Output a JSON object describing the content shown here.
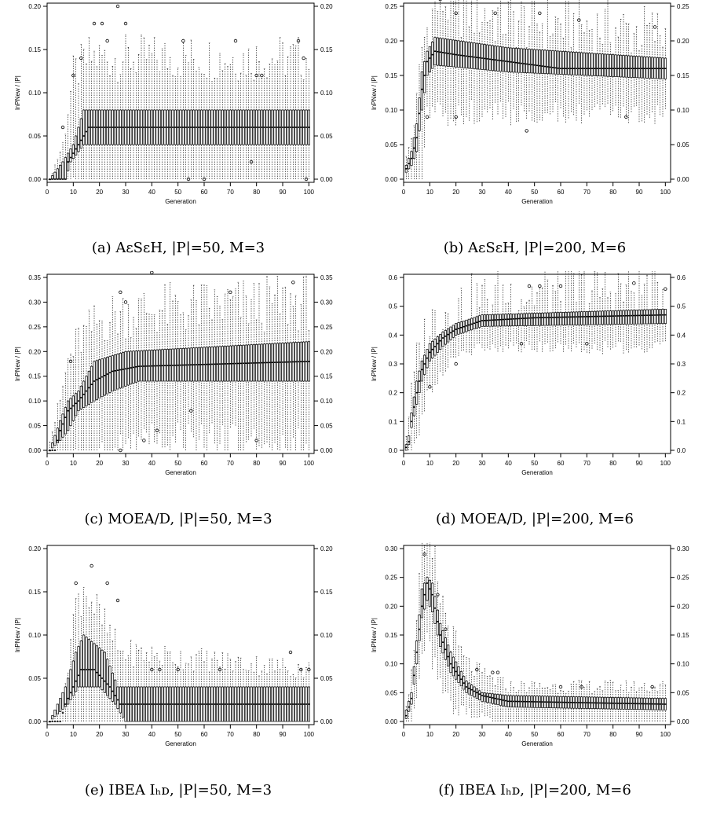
{
  "charts": [
    {
      "caption": "(a) AεSεH, |P|=50, M=3",
      "xlabel": "Generation",
      "ylabel": "lnPNew / |P|",
      "xlim": [
        0,
        102
      ],
      "ylim": [
        0,
        0.2
      ],
      "yticks": [
        "0.00",
        "0.05",
        "0.10",
        "0.15",
        "0.20"
      ]
    },
    {
      "caption": "(b) AεSεH, |P|=200, M=6",
      "xlabel": "Generation",
      "ylabel": "lnPNew / |P|",
      "xlim": [
        0,
        102
      ],
      "ylim": [
        0,
        0.25
      ],
      "yticks": [
        "0.00",
        "0.05",
        "0.10",
        "0.15",
        "0.20",
        "0.25"
      ]
    },
    {
      "caption": "(c) MOEA/D, |P|=50, M=3",
      "xlabel": "Generation",
      "ylabel": "lnPNew / |P|",
      "xlim": [
        0,
        102
      ],
      "ylim": [
        0,
        0.35
      ],
      "yticks": [
        "0.00",
        "0.05",
        "0.10",
        "0.15",
        "0.20",
        "0.25",
        "0.30",
        "0.35"
      ]
    },
    {
      "caption": "(d) MOEA/D, |P|=200, M=6",
      "xlabel": "Generation",
      "ylabel": "lnPNew / |P|",
      "xlim": [
        0,
        102
      ],
      "ylim": [
        0,
        0.6
      ],
      "yticks": [
        "0.0",
        "0.1",
        "0.2",
        "0.3",
        "0.4",
        "0.5",
        "0.6"
      ]
    },
    {
      "caption": "(e) IBEA Iₕᴅ, |P|=50, M=3",
      "xlabel": "Generation",
      "ylabel": "lnPNew / |P|",
      "xlim": [
        0,
        102
      ],
      "ylim": [
        0,
        0.2
      ],
      "yticks": [
        "0.00",
        "0.05",
        "0.10",
        "0.15",
        "0.20"
      ]
    },
    {
      "caption": "(f) IBEA Iₕᴅ, |P|=200, M=6",
      "xlabel": "Generation",
      "ylabel": "lnPNew / |P|",
      "xlim": [
        0,
        102
      ],
      "ylim": [
        0,
        0.3
      ],
      "yticks": [
        "0.00",
        "0.05",
        "0.10",
        "0.15",
        "0.20",
        "0.25",
        "0.30"
      ]
    }
  ],
  "chart_data": [
    {
      "type": "box",
      "panel": "a",
      "xticks": [
        0,
        10,
        20,
        30,
        40,
        50,
        60,
        70,
        80,
        90,
        100
      ],
      "generations": [
        1,
        100
      ],
      "median_points": [
        [
          1,
          0
        ],
        [
          7,
          0
        ],
        [
          8,
          0.02
        ],
        [
          12,
          0.04
        ],
        [
          16,
          0.06
        ],
        [
          20,
          0.06
        ],
        [
          30,
          0.06
        ],
        [
          50,
          0.06
        ],
        [
          100,
          0.06
        ]
      ],
      "q1_points": [
        [
          1,
          0
        ],
        [
          7,
          0
        ],
        [
          9,
          0.02
        ],
        [
          14,
          0.04
        ],
        [
          100,
          0.04
        ]
      ],
      "q3_points": [
        [
          1,
          0
        ],
        [
          6,
          0.02
        ],
        [
          10,
          0.04
        ],
        [
          14,
          0.08
        ],
        [
          18,
          0.08
        ],
        [
          100,
          0.08
        ]
      ],
      "max_points": [
        [
          1,
          0
        ],
        [
          6,
          0.04
        ],
        [
          10,
          0.12
        ],
        [
          16,
          0.14
        ],
        [
          100,
          0.14
        ]
      ],
      "outliers": [
        [
          6,
          0.06
        ],
        [
          10,
          0.12
        ],
        [
          13,
          0.14
        ],
        [
          18,
          0.18
        ],
        [
          21,
          0.18
        ],
        [
          23,
          0.16
        ],
        [
          27,
          0.2
        ],
        [
          30,
          0.18
        ],
        [
          52,
          0.16
        ],
        [
          72,
          0.16
        ],
        [
          96,
          0.16
        ],
        [
          98,
          0.14
        ],
        [
          80,
          0.12
        ],
        [
          82,
          0.12
        ],
        [
          54,
          0.0
        ],
        [
          60,
          0.0
        ],
        [
          78,
          0.02
        ],
        [
          99,
          0.0
        ]
      ]
    },
    {
      "type": "box",
      "panel": "b",
      "xticks": [
        0,
        10,
        20,
        30,
        40,
        50,
        60,
        70,
        80,
        90,
        100
      ],
      "generations": [
        1,
        100
      ],
      "median_points": [
        [
          1,
          0.015
        ],
        [
          3,
          0.03
        ],
        [
          5,
          0.06
        ],
        [
          7,
          0.13
        ],
        [
          9,
          0.17
        ],
        [
          12,
          0.185
        ],
        [
          20,
          0.18
        ],
        [
          40,
          0.17
        ],
        [
          60,
          0.16
        ],
        [
          100,
          0.16
        ]
      ],
      "q1_points": [
        [
          1,
          0.01
        ],
        [
          3,
          0.02
        ],
        [
          5,
          0.04
        ],
        [
          7,
          0.1
        ],
        [
          9,
          0.15
        ],
        [
          12,
          0.165
        ],
        [
          40,
          0.155
        ],
        [
          100,
          0.145
        ]
      ],
      "q3_points": [
        [
          1,
          0.02
        ],
        [
          3,
          0.04
        ],
        [
          5,
          0.08
        ],
        [
          7,
          0.155
        ],
        [
          9,
          0.185
        ],
        [
          12,
          0.205
        ],
        [
          40,
          0.19
        ],
        [
          100,
          0.175
        ]
      ],
      "max_points": [
        [
          1,
          0.03
        ],
        [
          3,
          0.06
        ],
        [
          5,
          0.11
        ],
        [
          7,
          0.19
        ],
        [
          10,
          0.23
        ],
        [
          14,
          0.26
        ],
        [
          40,
          0.23
        ],
        [
          100,
          0.21
        ]
      ],
      "outliers": [
        [
          14,
          0.26
        ],
        [
          20,
          0.24
        ],
        [
          35,
          0.24
        ],
        [
          52,
          0.24
        ],
        [
          47,
          0.07
        ],
        [
          20,
          0.09
        ],
        [
          85,
          0.09
        ],
        [
          9,
          0.09
        ],
        [
          67,
          0.23
        ],
        [
          96,
          0.22
        ]
      ]
    },
    {
      "type": "box",
      "panel": "c",
      "xticks": [
        0,
        10,
        20,
        30,
        40,
        50,
        60,
        70,
        80,
        90,
        100
      ],
      "generations": [
        1,
        100
      ],
      "median_points": [
        [
          1,
          0
        ],
        [
          3,
          0
        ],
        [
          5,
          0.04
        ],
        [
          8,
          0.08
        ],
        [
          12,
          0.1
        ],
        [
          18,
          0.14
        ],
        [
          25,
          0.16
        ],
        [
          35,
          0.17
        ],
        [
          100,
          0.18
        ]
      ],
      "q1_points": [
        [
          1,
          0
        ],
        [
          5,
          0.02
        ],
        [
          8,
          0.04
        ],
        [
          12,
          0.08
        ],
        [
          18,
          0.1
        ],
        [
          25,
          0.12
        ],
        [
          35,
          0.14
        ],
        [
          100,
          0.14
        ]
      ],
      "q3_points": [
        [
          1,
          0
        ],
        [
          5,
          0.06
        ],
        [
          8,
          0.1
        ],
        [
          12,
          0.12
        ],
        [
          18,
          0.18
        ],
        [
          30,
          0.2
        ],
        [
          100,
          0.22
        ]
      ],
      "max_points": [
        [
          1,
          0.02
        ],
        [
          5,
          0.1
        ],
        [
          8,
          0.18
        ],
        [
          12,
          0.22
        ],
        [
          20,
          0.26
        ],
        [
          30,
          0.28
        ],
        [
          100,
          0.3
        ]
      ],
      "outliers": [
        [
          9,
          0.18
        ],
        [
          28,
          0.32
        ],
        [
          40,
          0.36
        ],
        [
          70,
          0.32
        ],
        [
          94,
          0.34
        ],
        [
          30,
          0.3
        ],
        [
          37,
          0.02
        ],
        [
          42,
          0.04
        ],
        [
          55,
          0.08
        ],
        [
          80,
          0.02
        ],
        [
          28,
          0.0
        ]
      ]
    },
    {
      "type": "box",
      "panel": "d",
      "xticks": [
        0,
        10,
        20,
        30,
        40,
        50,
        60,
        70,
        80,
        90,
        100
      ],
      "generations": [
        1,
        100
      ],
      "median_points": [
        [
          1,
          0.01
        ],
        [
          2,
          0.03
        ],
        [
          3,
          0.1
        ],
        [
          5,
          0.2
        ],
        [
          7,
          0.28
        ],
        [
          10,
          0.34
        ],
        [
          15,
          0.39
        ],
        [
          20,
          0.42
        ],
        [
          30,
          0.45
        ],
        [
          50,
          0.46
        ],
        [
          100,
          0.47
        ]
      ],
      "q1_points": [
        [
          1,
          0.0
        ],
        [
          2,
          0.02
        ],
        [
          3,
          0.08
        ],
        [
          5,
          0.16
        ],
        [
          7,
          0.24
        ],
        [
          10,
          0.31
        ],
        [
          15,
          0.36
        ],
        [
          20,
          0.4
        ],
        [
          30,
          0.43
        ],
        [
          100,
          0.44
        ]
      ],
      "q3_points": [
        [
          1,
          0.02
        ],
        [
          2,
          0.05
        ],
        [
          3,
          0.13
        ],
        [
          5,
          0.24
        ],
        [
          7,
          0.31
        ],
        [
          10,
          0.37
        ],
        [
          15,
          0.41
        ],
        [
          20,
          0.44
        ],
        [
          30,
          0.47
        ],
        [
          100,
          0.49
        ]
      ],
      "max_points": [
        [
          1,
          0.05
        ],
        [
          3,
          0.2
        ],
        [
          5,
          0.32
        ],
        [
          8,
          0.4
        ],
        [
          12,
          0.46
        ],
        [
          20,
          0.5
        ],
        [
          40,
          0.54
        ],
        [
          100,
          0.56
        ]
      ],
      "outliers": [
        [
          48,
          0.57
        ],
        [
          52,
          0.57
        ],
        [
          60,
          0.57
        ],
        [
          88,
          0.58
        ],
        [
          100,
          0.56
        ],
        [
          45,
          0.37
        ],
        [
          70,
          0.37
        ],
        [
          10,
          0.22
        ],
        [
          20,
          0.3
        ]
      ]
    },
    {
      "type": "box",
      "panel": "e",
      "xticks": [
        0,
        10,
        20,
        30,
        40,
        50,
        60,
        70,
        80,
        90,
        100
      ],
      "generations": [
        1,
        100
      ],
      "median_points": [
        [
          1,
          0
        ],
        [
          5,
          0
        ],
        [
          7,
          0.02
        ],
        [
          10,
          0.04
        ],
        [
          13,
          0.06
        ],
        [
          18,
          0.06
        ],
        [
          24,
          0.04
        ],
        [
          28,
          0.02
        ],
        [
          35,
          0.02
        ],
        [
          100,
          0.02
        ]
      ],
      "q1_points": [
        [
          1,
          0
        ],
        [
          8,
          0.02
        ],
        [
          12,
          0.04
        ],
        [
          20,
          0.04
        ],
        [
          26,
          0.02
        ],
        [
          30,
          0
        ],
        [
          100,
          0
        ]
      ],
      "q3_points": [
        [
          1,
          0
        ],
        [
          7,
          0.04
        ],
        [
          11,
          0.08
        ],
        [
          14,
          0.1
        ],
        [
          22,
          0.08
        ],
        [
          27,
          0.04
        ],
        [
          100,
          0.04
        ]
      ],
      "max_points": [
        [
          1,
          0
        ],
        [
          6,
          0.02
        ],
        [
          10,
          0.12
        ],
        [
          14,
          0.16
        ],
        [
          20,
          0.12
        ],
        [
          28,
          0.08
        ],
        [
          100,
          0.06
        ]
      ],
      "outliers": [
        [
          11,
          0.16
        ],
        [
          18,
          0.22
        ],
        [
          17,
          0.18
        ],
        [
          23,
          0.16
        ],
        [
          27,
          0.14
        ],
        [
          40,
          0.06
        ],
        [
          43,
          0.06
        ],
        [
          50,
          0.06
        ],
        [
          66,
          0.06
        ],
        [
          93,
          0.08
        ],
        [
          97,
          0.06
        ],
        [
          100,
          0.06
        ]
      ]
    },
    {
      "type": "box",
      "panel": "f",
      "xticks": [
        0,
        10,
        20,
        30,
        40,
        50,
        60,
        70,
        80,
        90,
        100
      ],
      "generations": [
        1,
        100
      ],
      "median_points": [
        [
          1,
          0.01
        ],
        [
          3,
          0.04
        ],
        [
          5,
          0.12
        ],
        [
          7,
          0.2
        ],
        [
          9,
          0.24
        ],
        [
          11,
          0.22
        ],
        [
          14,
          0.15
        ],
        [
          18,
          0.1
        ],
        [
          24,
          0.06
        ],
        [
          30,
          0.045
        ],
        [
          40,
          0.035
        ],
        [
          100,
          0.03
        ]
      ],
      "q1_points": [
        [
          1,
          0.005
        ],
        [
          3,
          0.03
        ],
        [
          5,
          0.1
        ],
        [
          7,
          0.18
        ],
        [
          9,
          0.21
        ],
        [
          11,
          0.19
        ],
        [
          14,
          0.13
        ],
        [
          18,
          0.085
        ],
        [
          24,
          0.05
        ],
        [
          30,
          0.035
        ],
        [
          40,
          0.025
        ],
        [
          100,
          0.02
        ]
      ],
      "q3_points": [
        [
          1,
          0.02
        ],
        [
          3,
          0.05
        ],
        [
          5,
          0.14
        ],
        [
          7,
          0.23
        ],
        [
          9,
          0.25
        ],
        [
          11,
          0.24
        ],
        [
          14,
          0.17
        ],
        [
          18,
          0.12
        ],
        [
          24,
          0.07
        ],
        [
          30,
          0.05
        ],
        [
          40,
          0.045
        ],
        [
          100,
          0.04
        ]
      ],
      "max_points": [
        [
          1,
          0.03
        ],
        [
          3,
          0.08
        ],
        [
          5,
          0.2
        ],
        [
          7,
          0.28
        ],
        [
          9,
          0.29
        ],
        [
          11,
          0.28
        ],
        [
          14,
          0.22
        ],
        [
          18,
          0.15
        ],
        [
          24,
          0.1
        ],
        [
          30,
          0.08
        ],
        [
          40,
          0.06
        ],
        [
          100,
          0.06
        ]
      ],
      "outliers": [
        [
          8,
          0.29
        ],
        [
          13,
          0.22
        ],
        [
          16,
          0.16
        ],
        [
          28,
          0.09
        ],
        [
          34,
          0.085
        ],
        [
          36,
          0.085
        ],
        [
          60,
          0.06
        ],
        [
          68,
          0.06
        ],
        [
          95,
          0.06
        ]
      ]
    }
  ]
}
